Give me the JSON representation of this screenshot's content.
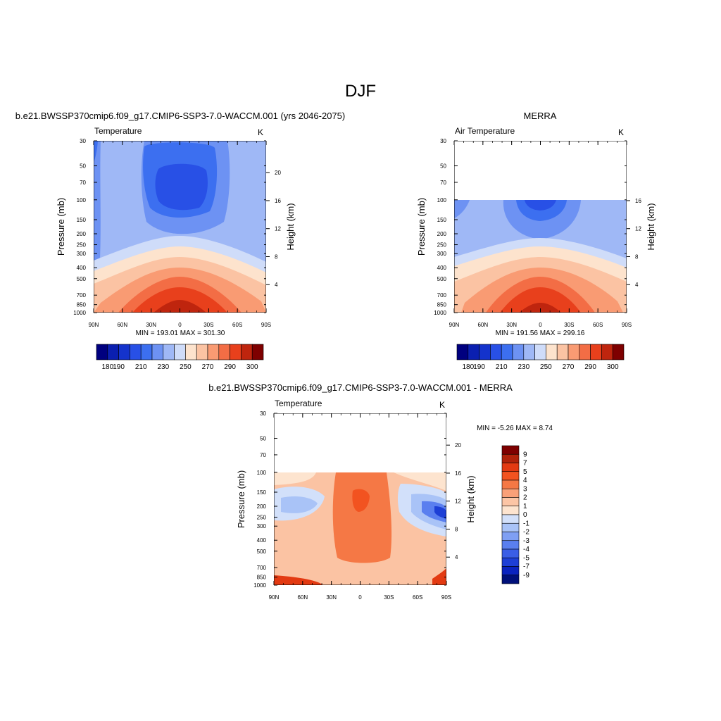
{
  "title": "DJF",
  "panels": {
    "model": {
      "case_title": "b.e21.BWSSP370cmip6.f09_g17.CMIP6-SSP3-7.0-WACCM.001 (yrs 2046-2075)",
      "var_title": "Temperature",
      "units": "K",
      "ylabel": "Pressure (mb)",
      "ylabel_right": "Height (km)",
      "minmax": "MIN = 193.01  MAX = 301.30"
    },
    "obs": {
      "case_title": "MERRA",
      "var_title": "Air Temperature",
      "units": "K",
      "ylabel": "Pressure (mb)",
      "ylabel_right": "Height (km)",
      "minmax": "MIN = 191.56  MAX = 299.16"
    },
    "diff": {
      "case_title": "b.e21.BWSSP370cmip6.f09_g17.CMIP6-SSP3-7.0-WACCM.001 - MERRA",
      "var_title": "Temperature",
      "units": "K",
      "ylabel": "Pressure (mb)",
      "ylabel_right": "Height (km)",
      "minmax": "MIN =  -5.26  MAX =   8.74"
    }
  },
  "chart_data": [
    {
      "type": "heatmap",
      "name": "model",
      "xticks": [
        "90N",
        "60N",
        "30N",
        "0",
        "30S",
        "60S",
        "90S"
      ],
      "yticks": [
        30,
        50,
        70,
        100,
        150,
        200,
        250,
        300,
        400,
        500,
        700,
        850,
        1000
      ],
      "height_ticks": [
        20,
        16,
        12,
        8,
        4
      ],
      "yscale": "log",
      "ylim": [
        1000,
        30
      ],
      "levels": [
        180,
        185,
        190,
        195,
        200,
        205,
        210,
        215,
        220,
        225,
        230,
        235,
        240,
        245,
        250,
        255,
        260,
        265,
        270,
        275,
        280,
        285,
        290,
        295,
        300
      ],
      "colorbar_labels": [
        "180",
        "190",
        "210",
        "230",
        "250",
        "270",
        "290",
        "300"
      ],
      "min": 193.01,
      "max": 301.3,
      "data_top_mb": 30
    },
    {
      "type": "heatmap",
      "name": "obs",
      "xticks": [
        "90N",
        "60N",
        "30N",
        "0",
        "30S",
        "60S",
        "90S"
      ],
      "yticks": [
        30,
        50,
        70,
        100,
        150,
        200,
        250,
        300,
        400,
        500,
        700,
        850,
        1000
      ],
      "height_ticks": [
        16,
        12,
        8,
        4
      ],
      "yscale": "log",
      "ylim": [
        1000,
        30
      ],
      "colorbar_labels": [
        "180",
        "190",
        "210",
        "230",
        "250",
        "270",
        "290",
        "300"
      ],
      "min": 191.56,
      "max": 299.16,
      "data_top_mb": 100
    },
    {
      "type": "heatmap",
      "name": "diff",
      "xticks": [
        "90N",
        "60N",
        "30N",
        "0",
        "30S",
        "60S",
        "90S"
      ],
      "yticks": [
        30,
        50,
        70,
        100,
        150,
        200,
        250,
        300,
        400,
        500,
        700,
        850,
        1000
      ],
      "height_ticks": [
        20,
        16,
        12,
        8,
        4
      ],
      "yscale": "log",
      "ylim": [
        1000,
        30
      ],
      "colorbar_labels": [
        "9",
        "7",
        "5",
        "4",
        "3",
        "2",
        "1",
        "0",
        "-1",
        "-2",
        "-3",
        "-4",
        "-5",
        "-7",
        "-9"
      ],
      "min": -5.26,
      "max": 8.74,
      "data_top_mb": 100
    }
  ],
  "colors": {
    "temp_bar": [
      "#00007f",
      "#0a1fb0",
      "#1433cc",
      "#2850e6",
      "#3c6ff0",
      "#6d92f3",
      "#9fb8f6",
      "#cfdcf9",
      "#fde3cd",
      "#fbc3a3",
      "#f99b73",
      "#f36d45",
      "#e8401c",
      "#bf250e",
      "#7e0000"
    ],
    "diff_bar": [
      "#7e0000",
      "#b0220a",
      "#e33a12",
      "#f25320",
      "#f57845",
      "#f9a078",
      "#fcc5a5",
      "#fde4cf",
      "#d2e0fa",
      "#a9c3f7",
      "#7f9ff3",
      "#5a7fef",
      "#3a5ee6",
      "#1d3fd6",
      "#0a23bf",
      "#00107a"
    ]
  }
}
